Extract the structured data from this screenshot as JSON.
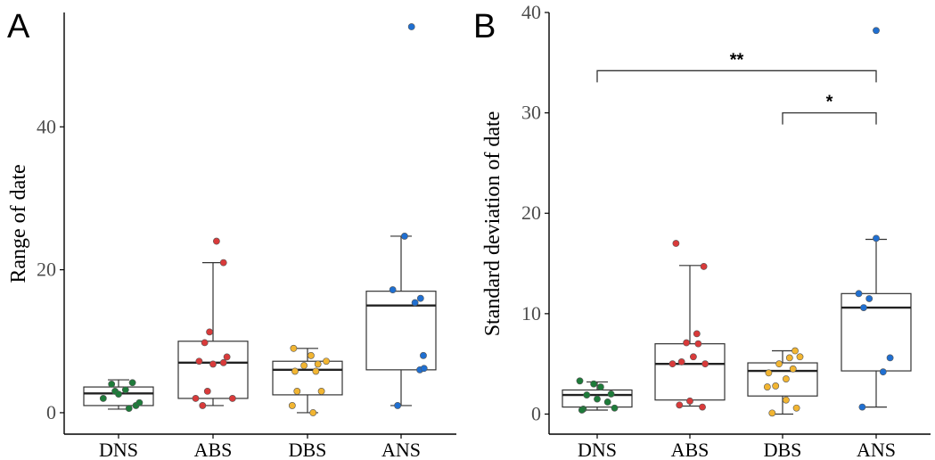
{
  "chart_data": [
    {
      "type": "box",
      "panel": "A",
      "ylabel": "Range of date",
      "xlabel": "",
      "categories": [
        "DNS",
        "ABS",
        "DBS",
        "ANS"
      ],
      "ylim": [
        -3,
        56
      ],
      "yticks": [
        0,
        20,
        40
      ],
      "grid": false,
      "colors": {
        "DNS": "#1e7b3a",
        "ABS": "#d93a3a",
        "DBS": "#f2b531",
        "ANS": "#1f6fd1"
      },
      "boxes": [
        {
          "category": "DNS",
          "whisker_low": 0.5,
          "q1": 1,
          "median": 2.7,
          "q3": 3.6,
          "whisker_high": 4.6
        },
        {
          "category": "ABS",
          "whisker_low": 1,
          "q1": 2,
          "median": 7,
          "q3": 10,
          "whisker_high": 21
        },
        {
          "category": "DBS",
          "whisker_low": 0,
          "q1": 2.5,
          "median": 6,
          "q3": 7.2,
          "whisker_high": 9
        },
        {
          "category": "ANS",
          "whisker_low": 1,
          "q1": 6,
          "median": 15,
          "q3": 17,
          "whisker_high": 24.7
        }
      ],
      "points": {
        "DNS": [
          [
            -0.22,
            2.0
          ],
          [
            -0.05,
            3.0
          ],
          [
            0.1,
            3.2
          ],
          [
            0.2,
            4.2
          ],
          [
            -0.1,
            4.0
          ],
          [
            0.25,
            1.0
          ],
          [
            0.15,
            0.6
          ],
          [
            0.0,
            2.6
          ],
          [
            0.3,
            1.4
          ]
        ],
        "ABS": [
          [
            0.05,
            24.0
          ],
          [
            0.15,
            21.0
          ],
          [
            -0.05,
            11.3
          ],
          [
            -0.12,
            9.8
          ],
          [
            0.2,
            7.8
          ],
          [
            -0.2,
            7.2
          ],
          [
            0.0,
            6.8
          ],
          [
            0.15,
            7.0
          ],
          [
            -0.08,
            3.0
          ],
          [
            -0.25,
            2.0
          ],
          [
            0.28,
            2.0
          ],
          [
            -0.15,
            1.0
          ]
        ],
        "DBS": [
          [
            -0.2,
            9.0
          ],
          [
            0.05,
            8.0
          ],
          [
            0.15,
            6.8
          ],
          [
            0.27,
            7.2
          ],
          [
            -0.05,
            6.6
          ],
          [
            -0.18,
            5.8
          ],
          [
            0.12,
            5.8
          ],
          [
            -0.15,
            3.0
          ],
          [
            0.2,
            3.0
          ],
          [
            -0.22,
            1.0
          ],
          [
            0.08,
            0.0
          ]
        ],
        "ANS": [
          [
            0.15,
            54.0
          ],
          [
            0.05,
            24.7
          ],
          [
            -0.12,
            17.2
          ],
          [
            0.28,
            16.0
          ],
          [
            0.2,
            15.4
          ],
          [
            0.32,
            8.0
          ],
          [
            0.27,
            6.0
          ],
          [
            0.33,
            6.2
          ],
          [
            -0.05,
            1.0
          ]
        ]
      }
    },
    {
      "type": "box",
      "panel": "B",
      "ylabel": "Standard deviation of date",
      "xlabel": "",
      "categories": [
        "DNS",
        "ABS",
        "DBS",
        "ANS"
      ],
      "ylim": [
        -2,
        40
      ],
      "yticks": [
        0,
        10,
        20,
        30,
        40
      ],
      "grid": false,
      "colors": {
        "DNS": "#1e7b3a",
        "ABS": "#d93a3a",
        "DBS": "#f2b531",
        "ANS": "#1f6fd1"
      },
      "boxes": [
        {
          "category": "DNS",
          "whisker_low": 0.4,
          "q1": 0.7,
          "median": 1.9,
          "q3": 2.4,
          "whisker_high": 3.2
        },
        {
          "category": "ABS",
          "whisker_low": 0.8,
          "q1": 1.4,
          "median": 5.0,
          "q3": 7.0,
          "whisker_high": 14.8
        },
        {
          "category": "DBS",
          "whisker_low": 0.0,
          "q1": 1.8,
          "median": 4.3,
          "q3": 5.1,
          "whisker_high": 6.3
        },
        {
          "category": "ANS",
          "whisker_low": 0.7,
          "q1": 4.3,
          "median": 10.6,
          "q3": 12.0,
          "whisker_high": 17.4
        }
      ],
      "points": {
        "DNS": [
          [
            -0.25,
            3.3
          ],
          [
            -0.05,
            3.0
          ],
          [
            0.05,
            2.7
          ],
          [
            0.2,
            2.0
          ],
          [
            -0.15,
            1.9
          ],
          [
            0.0,
            1.5
          ],
          [
            0.15,
            1.2
          ],
          [
            -0.2,
            0.5
          ],
          [
            0.25,
            0.6
          ],
          [
            -0.22,
            0.4
          ]
        ],
        "ABS": [
          [
            -0.2,
            17.0
          ],
          [
            0.2,
            14.7
          ],
          [
            0.1,
            8.0
          ],
          [
            -0.05,
            7.1
          ],
          [
            0.12,
            7.0
          ],
          [
            0.05,
            5.7
          ],
          [
            -0.12,
            5.2
          ],
          [
            0.22,
            5.0
          ],
          [
            -0.25,
            5.0
          ],
          [
            0.0,
            1.3
          ],
          [
            -0.15,
            0.9
          ],
          [
            0.18,
            0.7
          ]
        ],
        "DBS": [
          [
            0.18,
            6.3
          ],
          [
            0.1,
            5.6
          ],
          [
            0.25,
            5.7
          ],
          [
            -0.05,
            5.0
          ],
          [
            0.15,
            4.5
          ],
          [
            -0.2,
            4.1
          ],
          [
            0.05,
            3.5
          ],
          [
            -0.1,
            2.8
          ],
          [
            -0.22,
            2.7
          ],
          [
            0.05,
            1.4
          ],
          [
            -0.15,
            0.1
          ],
          [
            0.2,
            0.6
          ]
        ],
        "ANS": [
          [
            0.0,
            38.2
          ],
          [
            0.0,
            17.5
          ],
          [
            -0.25,
            12.0
          ],
          [
            -0.1,
            11.5
          ],
          [
            -0.18,
            10.6
          ],
          [
            0.2,
            5.6
          ],
          [
            0.1,
            4.2
          ],
          [
            -0.2,
            0.7
          ]
        ]
      },
      "significance": [
        {
          "from": "DNS",
          "to": "ANS",
          "label": "**",
          "y": 34.2
        },
        {
          "from": "DBS",
          "to": "ANS",
          "label": "*",
          "y": 30.0
        }
      ]
    }
  ]
}
